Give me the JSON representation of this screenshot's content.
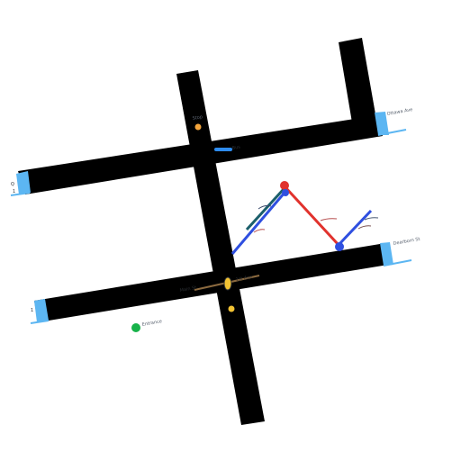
{
  "map": {
    "labels": {
      "top_right_street": "Ottawa Ave",
      "right_mid_street": "Dearborn St",
      "top_pin_label": "Stop",
      "blue_chip_label": "Bus",
      "bottom_left_green_label": "Entrance",
      "center_label_left": "Main St",
      "center_label_right": "1st Ave",
      "left_edge_top": "Q",
      "left_edge_mid": "1",
      "left_edge_bottom": "1"
    },
    "markers": {
      "red_dot": "start",
      "blue_dot_top": "waypoint",
      "blue_dot_right": "end",
      "green_dot": "entrance",
      "orange_dot": "stop",
      "yellow_dot": "info"
    },
    "colors": {
      "road": "#000000",
      "road_cap": "#5cb6f2",
      "route_red": "#e1322d",
      "route_blue": "#2f4fe0",
      "route_teal": "#1b5f6b",
      "marker_green": "#17b24a",
      "marker_orange": "#f3a43b",
      "marker_yellow": "#f2c233"
    }
  }
}
